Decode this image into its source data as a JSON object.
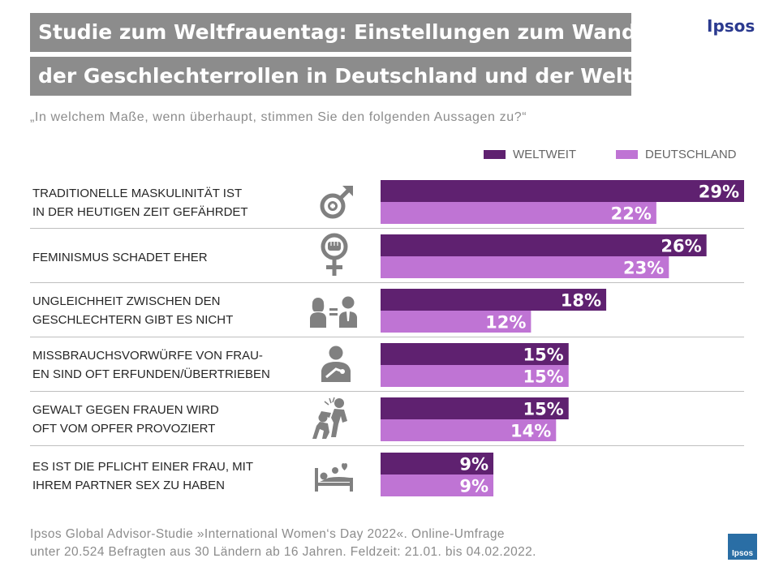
{
  "header": {
    "title_line1": "Studie zum Weltfrauentag: Einstellungen zum Wandel",
    "title_line2": "der Geschlechterrollen in Deutschland und der Welt",
    "brand": "Ipsos"
  },
  "question": "„In welchem Maße, wenn überhaupt, stimmen Sie den folgenden Aussagen zu?“",
  "colors": {
    "world": "#5f2170",
    "germany": "#bf74d4",
    "title_bg": "#8c8c8c",
    "icon": "#808080"
  },
  "chart_data": {
    "type": "bar",
    "orientation": "horizontal",
    "unit": "%",
    "xlim": [
      0,
      29
    ],
    "legend": [
      "WELTWEIT",
      "DEUTSCHLAND"
    ],
    "legend_position": "top-right",
    "categories": [
      {
        "lines": [
          "TRADITIONELLE MASKULINITÄT IST",
          "IN DER HEUTIGEN ZEIT GEFÄHRDET"
        ],
        "icon": "male-symbol-icon"
      },
      {
        "lines": [
          "FEMINISMUS SCHADET EHER"
        ],
        "icon": "feminist-fist-icon"
      },
      {
        "lines": [
          "UNGLEICHHEIT ZWISCHEN DEN",
          "GESCHLECHTERN GIBT ES NICHT"
        ],
        "icon": "gender-equality-icon"
      },
      {
        "lines": [
          "MISSBRAUCHSVORWÜRFE VON FRAU-",
          "EN SIND OFT ERFUNDEN/ÜBERTRIEBEN"
        ],
        "icon": "harassment-icon"
      },
      {
        "lines": [
          "GEWALT GEGEN FRAUEN WIRD",
          "OFT VOM OPFER PROVOZIERT"
        ],
        "icon": "violence-icon"
      },
      {
        "lines": [
          "ES IST DIE PFLICHT EINER FRAU, MIT",
          "IHREM PARTNER SEX ZU HABEN"
        ],
        "icon": "bed-heart-icon"
      }
    ],
    "series": [
      {
        "name": "WELTWEIT",
        "values": [
          29,
          26,
          18,
          15,
          15,
          9
        ],
        "labels": [
          "29%",
          "26%",
          "18%",
          "15%",
          "15%",
          "9%"
        ]
      },
      {
        "name": "DEUTSCHLAND",
        "values": [
          22,
          23,
          12,
          15,
          14,
          9
        ],
        "labels": [
          "22%",
          "23%",
          "12%",
          "15%",
          "14%",
          "9%"
        ]
      }
    ]
  },
  "footer": {
    "line1": "Ipsos Global Advisor-Studie  »International Women‘s Day 2022«. Online-Umfrage",
    "line2": "unter 20.524 Befragten  aus 30 Ländern ab 16 Jahren. Feldzeit: 21.01. bis 04.02.2022.",
    "logo_text": "Ipsos"
  }
}
